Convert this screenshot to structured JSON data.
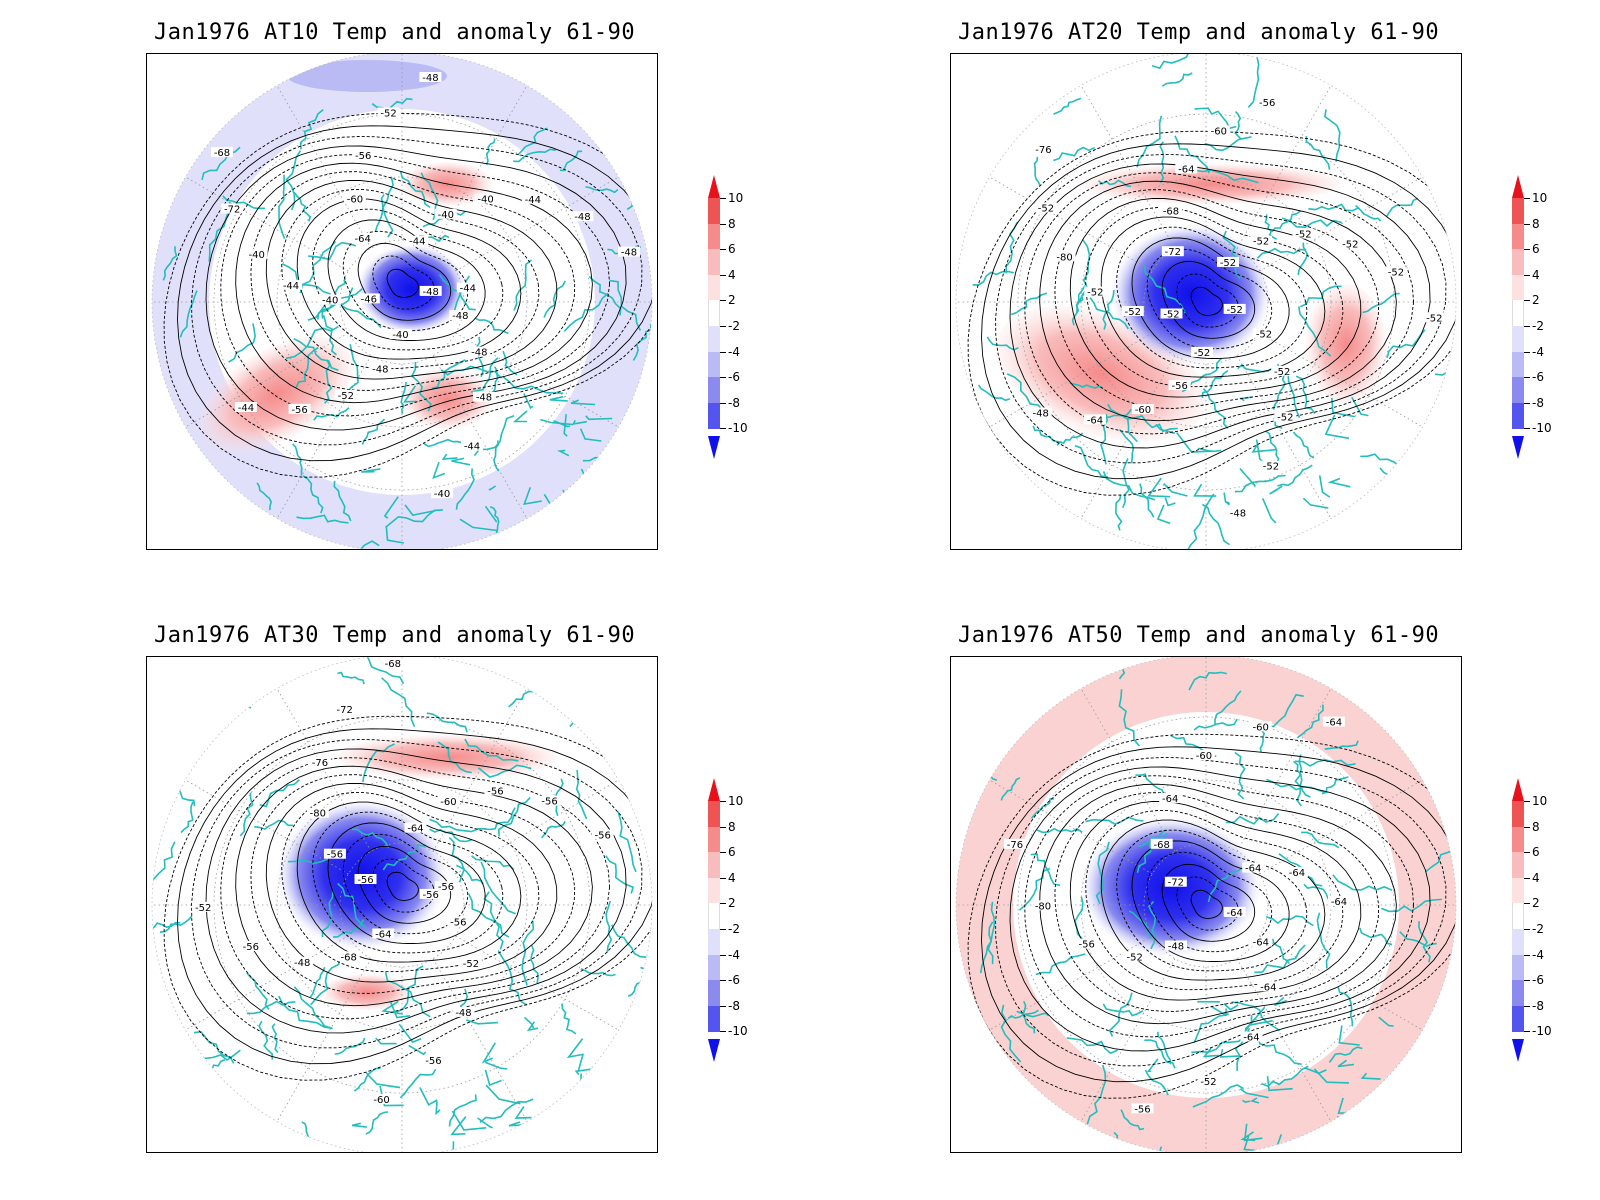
{
  "panels": [
    {
      "title": "Jan1976 AT10 Temp and anomaly 61-90",
      "contour_labels": [
        "-48",
        "-48",
        "-48",
        "-48",
        "-44",
        "-40",
        "-40",
        "-48",
        "-52",
        "-56",
        "-44",
        "-46",
        "-40",
        "-44",
        "-40",
        "-72",
        "-68",
        "-64",
        "-60",
        "-56",
        "-52",
        "-48",
        "-44",
        "-40",
        "-40",
        "-44",
        "-48",
        "-48",
        "-44"
      ]
    },
    {
      "title": "Jan1976 AT20 Temp and anomaly 61-90",
      "contour_labels": [
        "-52",
        "-52",
        "-52",
        "-52",
        "-52",
        "-48",
        "-52",
        "-56",
        "-60",
        "-64",
        "-48",
        "-52",
        "-52",
        "-52",
        "-80",
        "-52",
        "-76",
        "-72",
        "-68",
        "-64",
        "-60",
        "-56",
        "-52",
        "-52",
        "-52",
        "-52",
        "-52",
        "-52"
      ]
    },
    {
      "title": "Jan1976 AT30 Temp and anomaly 61-90",
      "contour_labels": [
        "-56",
        "-56",
        "-52",
        "-48",
        "-56",
        "-60",
        "-64",
        "-68",
        "-48",
        "-56",
        "-52",
        "-56",
        "-56",
        "-80",
        "-76",
        "-72",
        "-68",
        "-64",
        "-60",
        "-56",
        "-56",
        "-56",
        "-56"
      ]
    },
    {
      "title": "Jan1976 AT50 Temp and anomaly 61-90",
      "contour_labels": [
        "-64",
        "-64",
        "-64",
        "-64",
        "-52",
        "-56",
        "-48",
        "-52",
        "-56",
        "-80",
        "-76",
        "-72",
        "-68",
        "-64",
        "-60",
        "-60",
        "-64",
        "-64",
        "-64",
        "-64"
      ]
    }
  ],
  "colorbar": {
    "labels": [
      "10",
      "8",
      "6",
      "4",
      "2",
      "-2",
      "-4",
      "-6",
      "-8",
      "-10"
    ],
    "colors": [
      "#e8101a",
      "#ef5454",
      "#f58b8b",
      "#f9bcbc",
      "#fde0e0",
      "#ffffff",
      "#e0e0fb",
      "#babaf5",
      "#8a8aef",
      "#5454ef",
      "#1010ec"
    ]
  }
}
